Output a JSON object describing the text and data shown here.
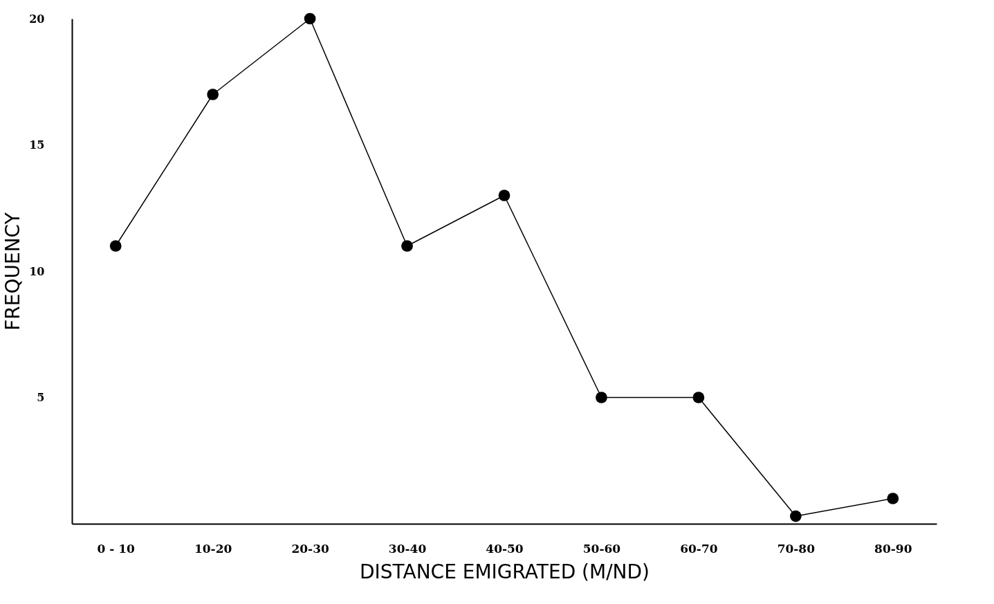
{
  "chart_data": {
    "type": "line",
    "xlabel": "DISTANCE EMIGRATED (M/ND)",
    "ylabel": "FREQUENCY",
    "categories": [
      "0 - 10",
      "10-20",
      "20-30",
      "30-40",
      "40-50",
      "50-60",
      "60-70",
      "70-80",
      "80-90"
    ],
    "series": [
      {
        "color": "#000000",
        "values": [
          11,
          17,
          20,
          11,
          13,
          5,
          5,
          0.3,
          1
        ]
      }
    ],
    "ylim": [
      0,
      20
    ],
    "yticks": [
      5,
      10,
      15,
      20
    ],
    "grid": false,
    "marker": "circle",
    "line_style": "solid"
  }
}
